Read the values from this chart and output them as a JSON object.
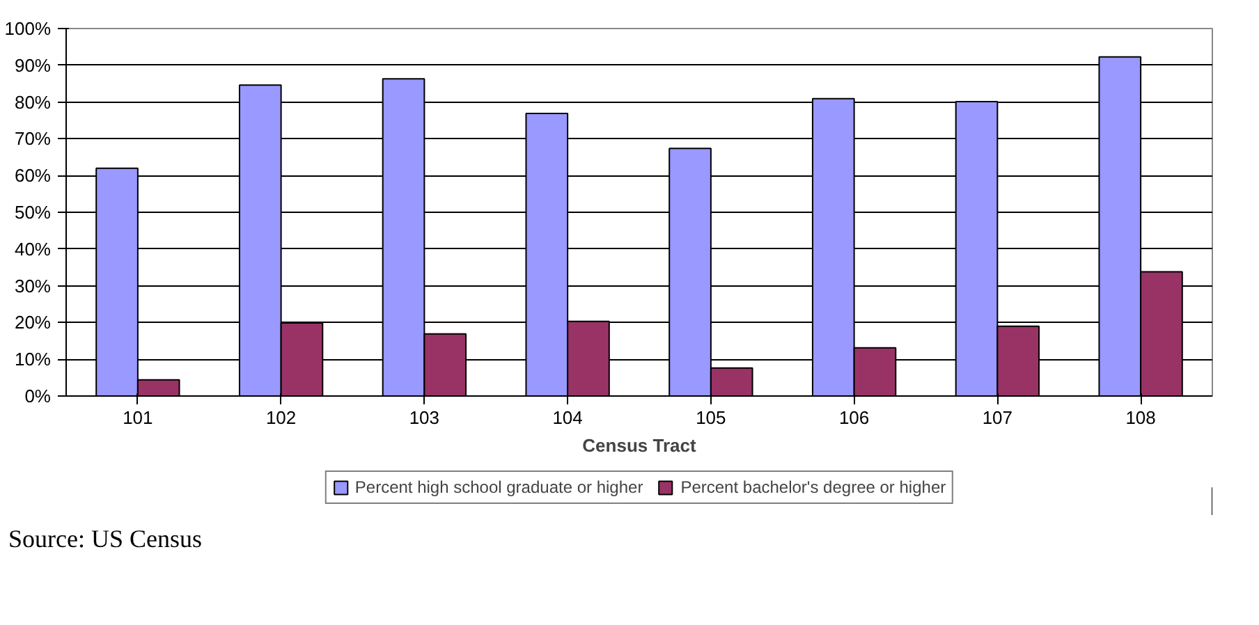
{
  "chart_data": {
    "type": "bar",
    "xlabel": "Census Tract",
    "categories": [
      "101",
      "102",
      "103",
      "104",
      "105",
      "106",
      "107",
      "108"
    ],
    "series": [
      {
        "name": "Percent high school graduate or higher",
        "color": "#9999ff",
        "values": [
          62.0,
          84.6,
          86.3,
          76.9,
          67.4,
          80.9,
          80.1,
          92.3
        ]
      },
      {
        "name": "Percent bachelor's degree or higher",
        "color": "#993366",
        "values": [
          4.4,
          19.9,
          16.9,
          20.3,
          7.6,
          13.1,
          19.0,
          33.8
        ]
      }
    ],
    "ylim": [
      0,
      100
    ],
    "yticks": [
      {
        "value": 0,
        "label": "0%"
      },
      {
        "value": 10,
        "label": "10%"
      },
      {
        "value": 20,
        "label": "20%"
      },
      {
        "value": 30,
        "label": "30%"
      },
      {
        "value": 40,
        "label": "40%"
      },
      {
        "value": 50,
        "label": "50%"
      },
      {
        "value": 60,
        "label": "60%"
      },
      {
        "value": 70,
        "label": "70%"
      },
      {
        "value": 80,
        "label": "80%"
      },
      {
        "value": 90,
        "label": "90%"
      },
      {
        "value": 100,
        "label": "100%"
      }
    ],
    "grid": "y",
    "legend": "bottom",
    "annotations": [
      "Source: US Census"
    ]
  }
}
